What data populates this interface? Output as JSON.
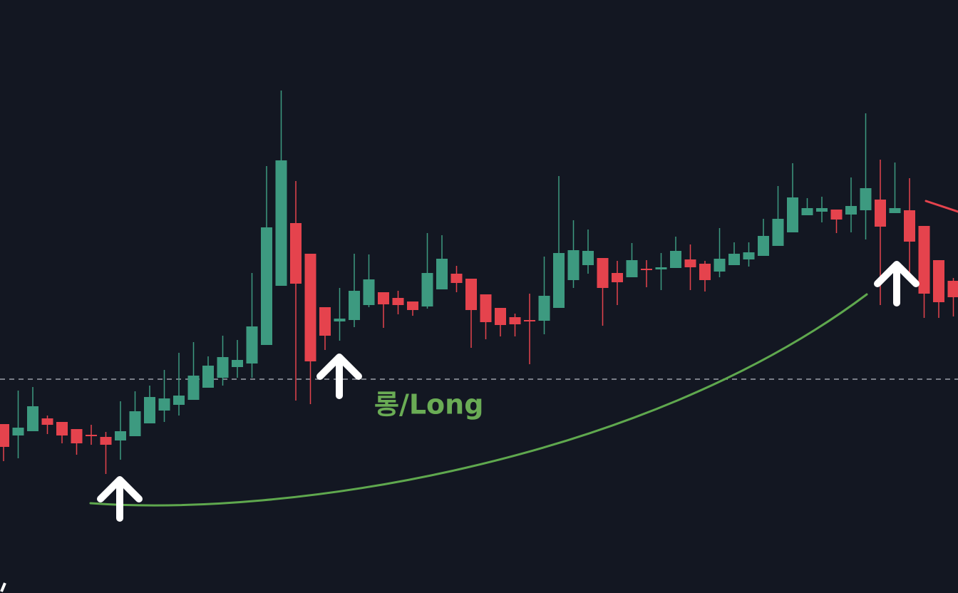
{
  "chart_data": {
    "type": "candlestick",
    "open": [
      237,
      221,
      227,
      245,
      240,
      230,
      222,
      219,
      214,
      220,
      238,
      256,
      264,
      271,
      288,
      302,
      317,
      322,
      348,
      431,
      519,
      476,
      401,
      381,
      383,
      404,
      422,
      414,
      409,
      402,
      426,
      448,
      441,
      419,
      400,
      387,
      383,
      382,
      400,
      439,
      460,
      470,
      449,
      443,
      455,
      454,
      456,
      468,
      462,
      451,
      460,
      468,
      473,
      487,
      506,
      530,
      535,
      538,
      531,
      537,
      552,
      533,
      537,
      515,
      467,
      438
    ],
    "high": [
      237,
      284,
      289,
      249,
      240,
      230,
      236,
      226,
      269,
      283,
      291,
      313,
      337,
      352,
      332,
      361,
      355,
      449,
      599,
      705,
      578,
      476,
      401,
      428,
      476,
      475,
      422,
      424,
      409,
      505,
      502,
      459,
      441,
      419,
      400,
      392,
      420,
      472,
      585,
      523,
      510,
      470,
      466,
      491,
      467,
      477,
      500,
      489,
      466,
      512,
      492,
      492,
      525,
      571,
      603,
      554,
      556,
      538,
      583,
      673,
      608,
      604,
      582,
      515,
      467,
      442
    ],
    "low": [
      185,
      189,
      227,
      223,
      210,
      194,
      208,
      167,
      187,
      220,
      238,
      240,
      249,
      271,
      288,
      291,
      302,
      302,
      348,
      431,
      270,
      265,
      341,
      354,
      373,
      401,
      372,
      391,
      389,
      399,
      426,
      422,
      344,
      356,
      360,
      360,
      321,
      363,
      400,
      428,
      448,
      375,
      404,
      443,
      429,
      425,
      456,
      425,
      423,
      443,
      460,
      458,
      473,
      487,
      506,
      530,
      520,
      505,
      506,
      496,
      404,
      533,
      444,
      386,
      386,
      388
    ],
    "close": [
      205,
      232,
      262,
      236,
      221,
      210,
      220,
      208,
      227,
      255,
      275,
      273,
      277,
      305,
      319,
      331,
      327,
      374,
      513,
      607,
      434,
      325,
      361,
      385,
      424,
      440,
      405,
      404,
      397,
      449,
      469,
      435,
      397,
      380,
      376,
      377,
      381,
      417,
      477,
      481,
      480,
      428,
      436,
      467,
      453,
      457,
      480,
      457,
      439,
      469,
      476,
      478,
      501,
      525,
      555,
      540,
      540,
      524,
      543,
      568,
      514,
      540,
      493,
      420,
      408,
      415
    ],
    "ylim": [
      0,
      832
    ],
    "up_color": "#3d9a80",
    "down_color": "#e5434d",
    "reference_line": 300,
    "annotation": "롱/Long"
  }
}
